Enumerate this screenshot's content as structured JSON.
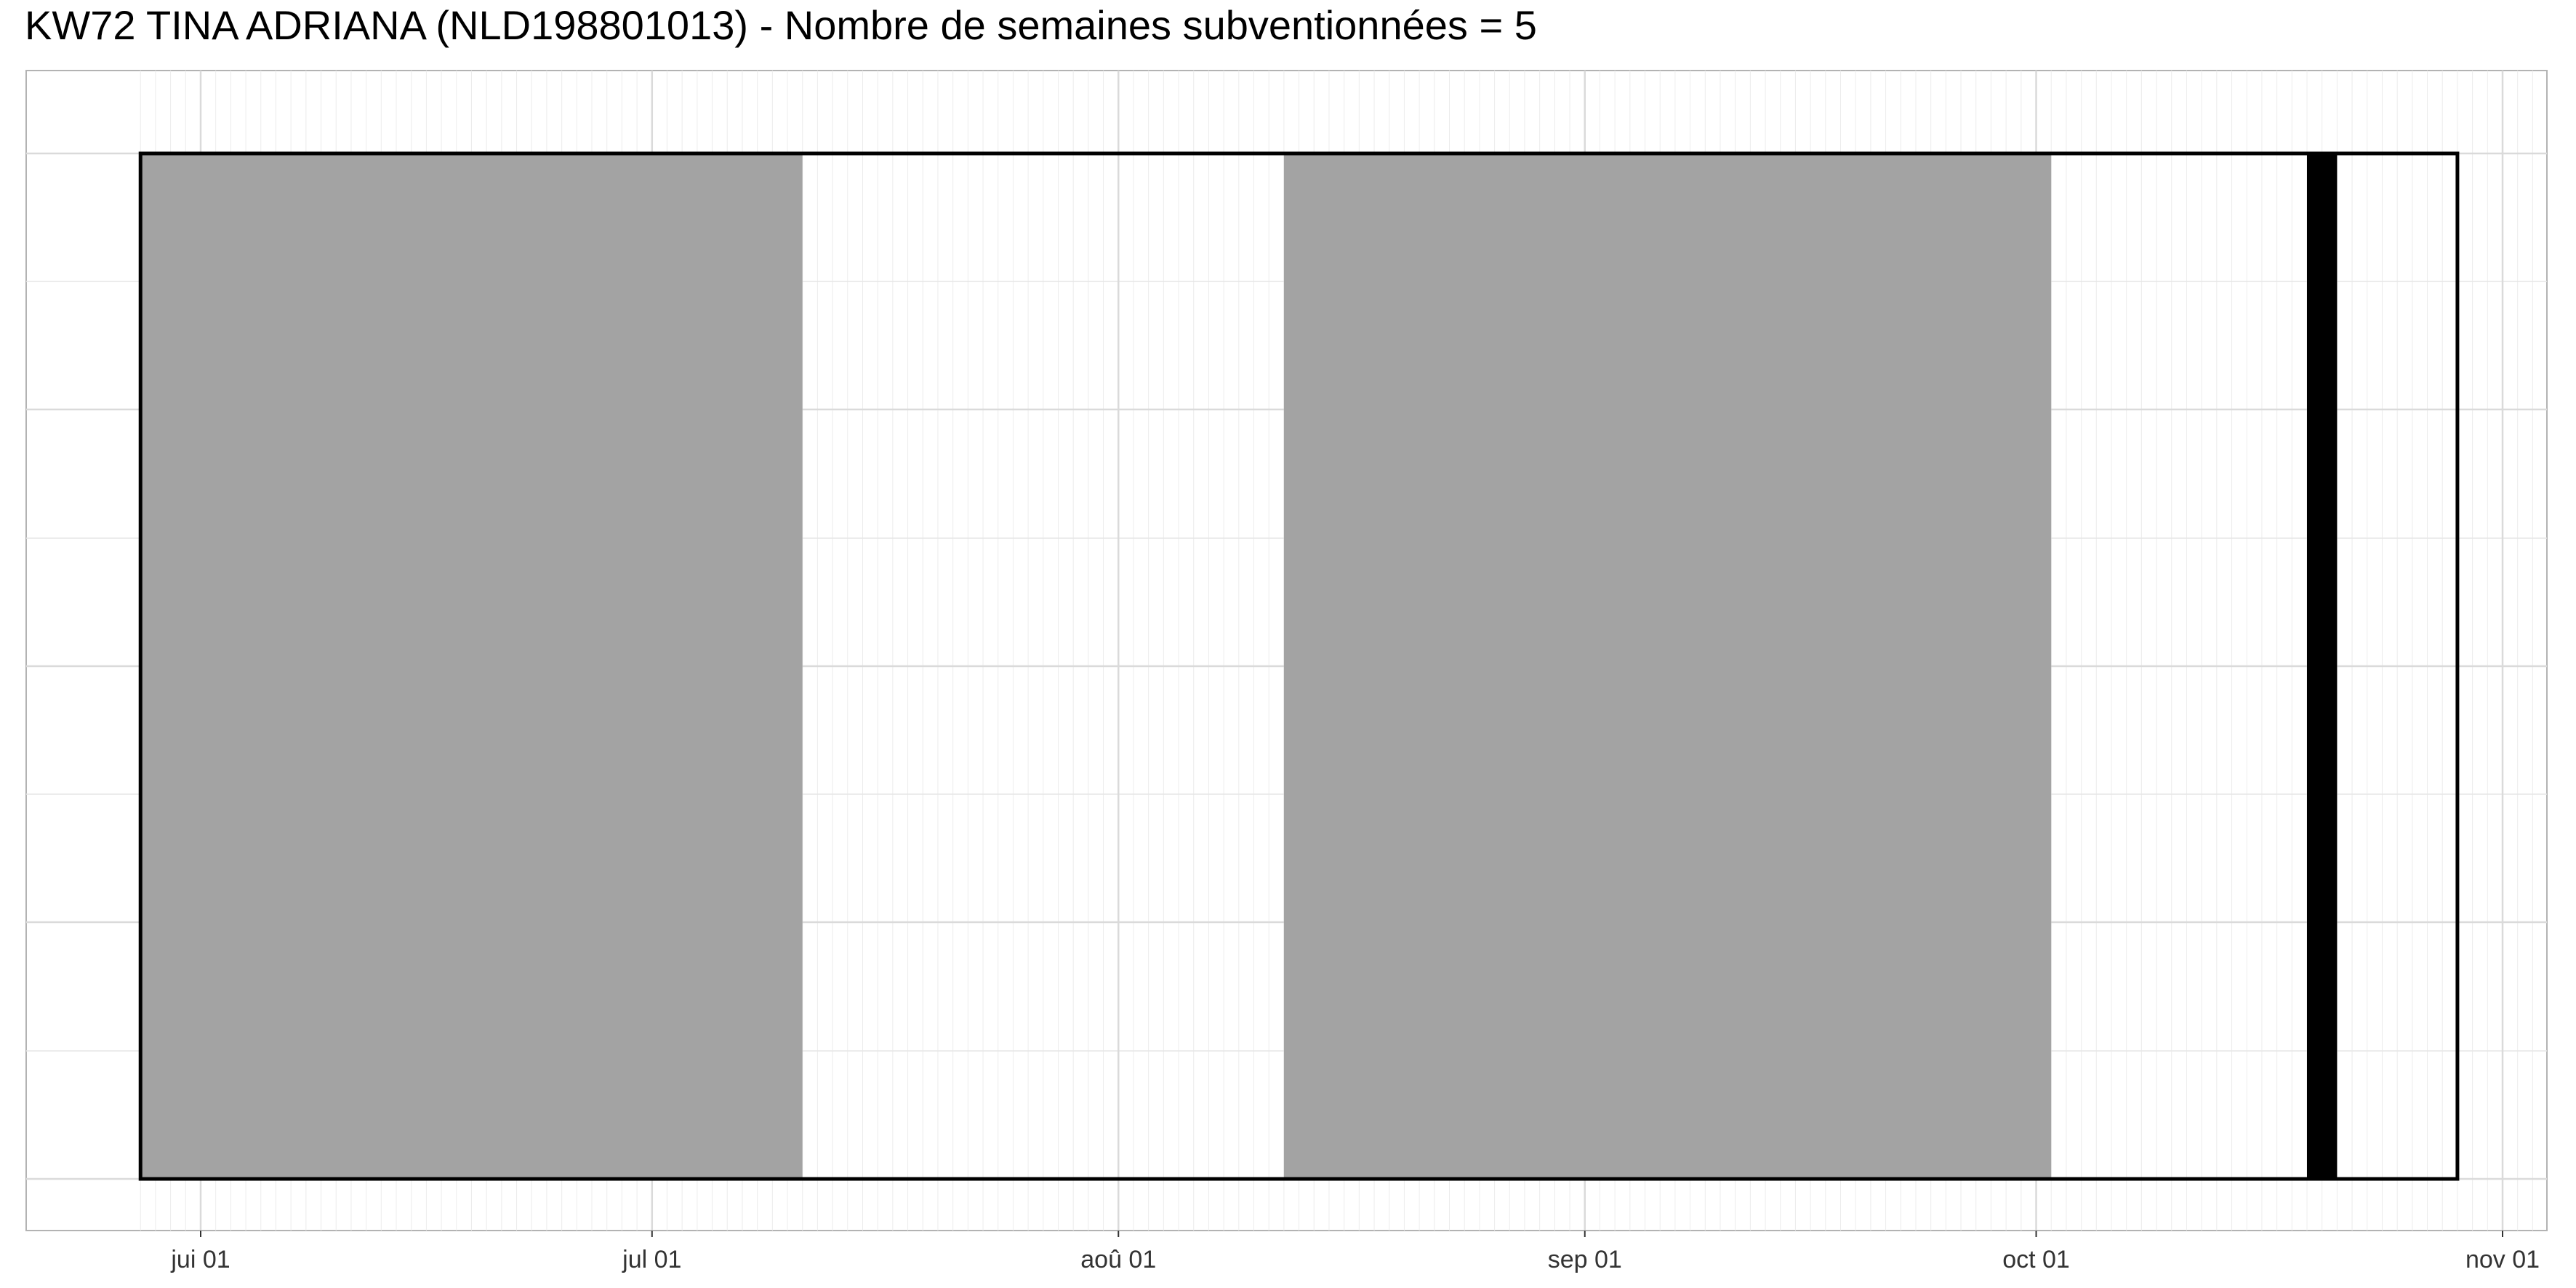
{
  "chart_data": {
    "type": "timeline",
    "title": "KW72 TINA ADRIANA (NLD198801013) - Nombre de semaines subventionnées = 5",
    "xlabel": "",
    "ylabel": "",
    "x_axis": {
      "type": "date",
      "range": [
        "2020-05-28",
        "2020-11-04"
      ],
      "ticks": [
        {
          "label": "jui 01",
          "date": "2020-06-01"
        },
        {
          "label": "jul 01",
          "date": "2020-07-01"
        },
        {
          "label": "aoû 01",
          "date": "2020-08-01"
        },
        {
          "label": "sep 01",
          "date": "2020-09-01"
        },
        {
          "label": "oct 01",
          "date": "2020-10-01"
        },
        {
          "label": "nov 01",
          "date": "2020-11-01"
        }
      ]
    },
    "outline": {
      "start": "2020-05-28",
      "end": "2020-10-29"
    },
    "periods": [
      {
        "start": "2020-05-28",
        "end": "2020-07-11",
        "color": "#a3a3a3"
      },
      {
        "start": "2020-08-12",
        "end": "2020-10-02",
        "color": "#a3a3a3"
      },
      {
        "start": "2020-10-19",
        "end": "2020-10-21",
        "color": "#000000"
      }
    ],
    "grid": true
  }
}
